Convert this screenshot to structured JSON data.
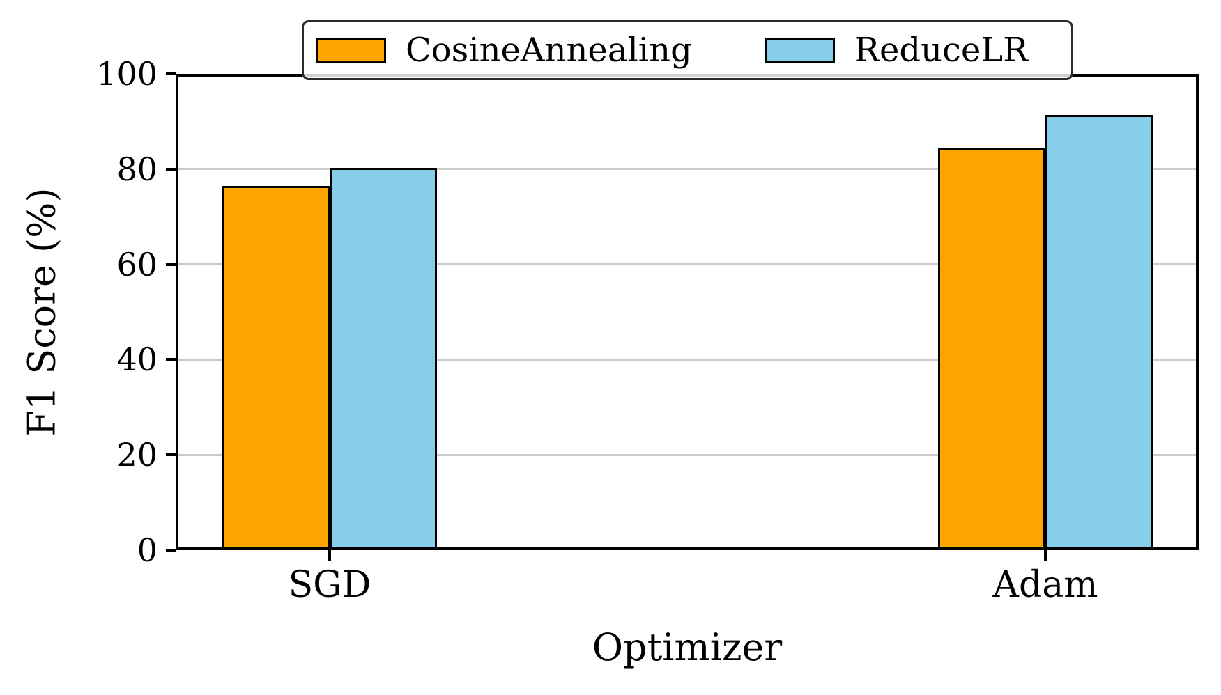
{
  "chart_data": {
    "type": "bar",
    "title": "",
    "categories": [
      "SGD",
      "Adam"
    ],
    "series": [
      {
        "name": "CosineAnnealing",
        "color": "#FFA500",
        "values": [
          76.4,
          84.4
        ]
      },
      {
        "name": "ReduceLR",
        "color": "#87CEEB",
        "values": [
          80.3,
          91.4
        ]
      }
    ],
    "xlabel": "Optimizer",
    "ylabel": "F1 Score (%)",
    "ylim": [
      0,
      100
    ],
    "yticks": [
      0,
      20,
      40,
      60,
      80,
      100
    ],
    "grid": true,
    "grid_color": "#cccccc",
    "bar_edge_color": "#000000",
    "legend_position": "upper center",
    "legend_border_color": "#2b2b2b",
    "background_color": "#ffffff"
  }
}
